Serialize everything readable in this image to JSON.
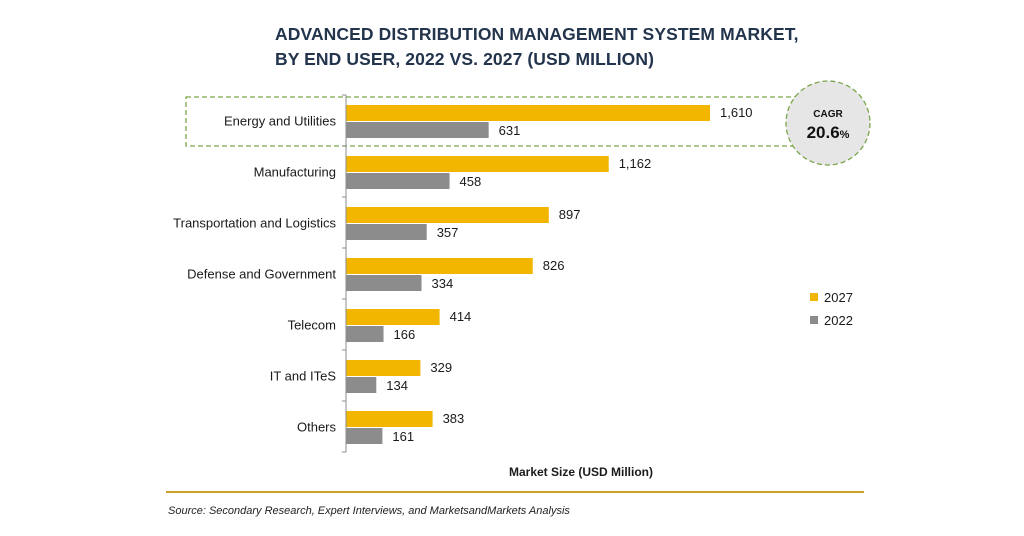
{
  "title_lines": [
    "ADVANCED DISTRIBUTION MANAGEMENT SYSTEM MARKET,",
    "BY END USER, 2022 VS. 2027 (USD MILLION)"
  ],
  "source": "Source: Secondary Research, Expert Interviews, and MarketsandMarkets Analysis",
  "cagr": {
    "label": "CAGR",
    "value": "20.6",
    "unit": "%"
  },
  "colors": {
    "series_2027": "#f2b600",
    "series_2022": "#8c8c8c",
    "title": "#23344d",
    "highlight_border": "#7aa64a",
    "cagr_bg": "#e6e6e6",
    "footer_line": "#c9a227"
  },
  "chart_data": {
    "type": "bar",
    "orientation": "horizontal",
    "categories": [
      "Energy and Utilities",
      "Manufacturing",
      "Transportation and Logistics",
      "Defense and Government",
      "Telecom",
      "IT and ITeS",
      "Others"
    ],
    "series": [
      {
        "name": "2027",
        "values": [
          1610,
          1162,
          897,
          826,
          414,
          329,
          383
        ],
        "labels": [
          "1,610",
          "1,162",
          "897",
          "826",
          "414",
          "329",
          "383"
        ]
      },
      {
        "name": "2022",
        "values": [
          631,
          458,
          357,
          334,
          166,
          134,
          161
        ],
        "labels": [
          "631",
          "458",
          "357",
          "334",
          "166",
          "134",
          "161"
        ]
      }
    ],
    "xlabel": "Market Size (USD Million)",
    "ylabel": "",
    "xlim": [
      0,
      1910
    ],
    "highlighted_category": "Energy and Utilities",
    "legend_position": "right",
    "grid": false
  }
}
